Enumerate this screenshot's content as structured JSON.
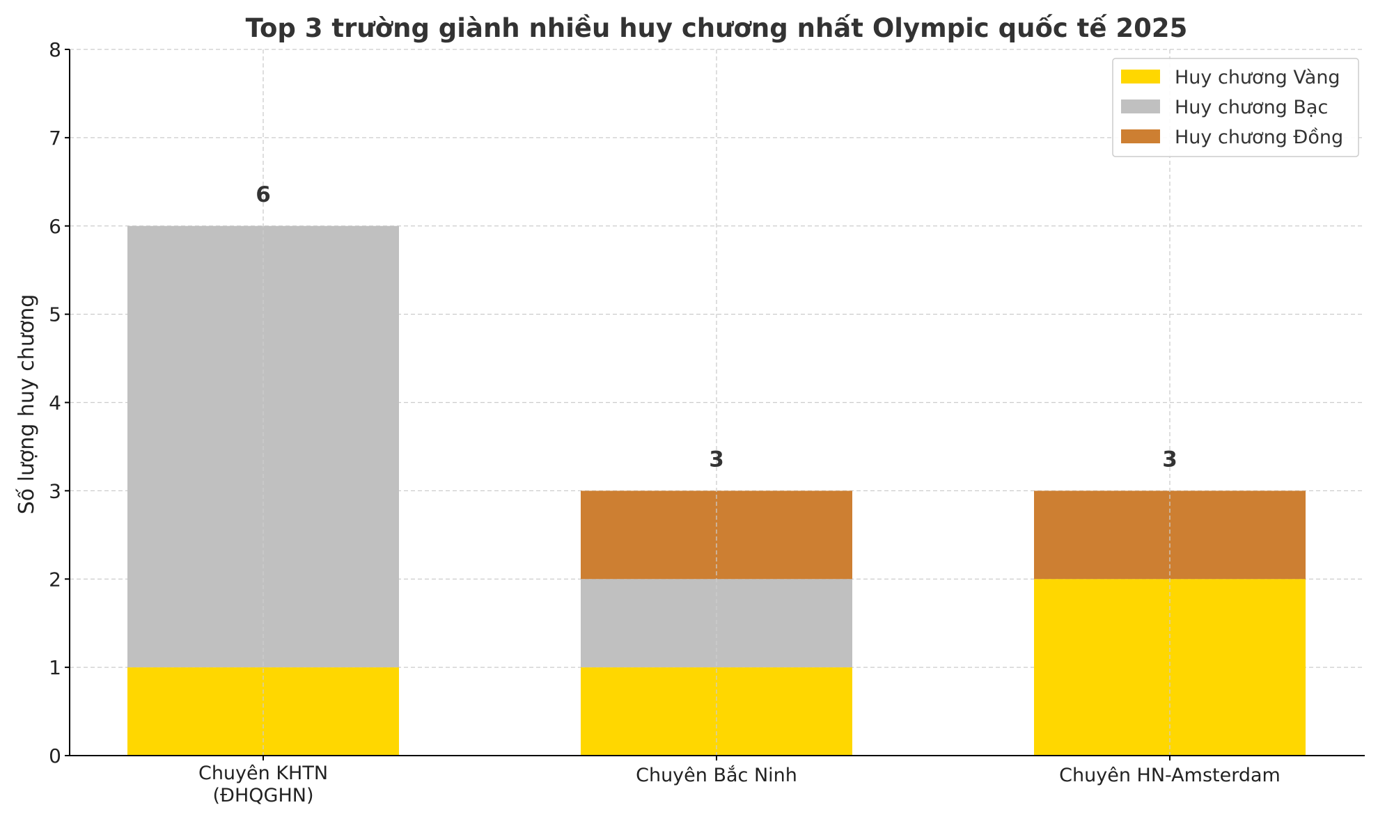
{
  "chart_data": {
    "type": "bar",
    "stacked": true,
    "title": "Top 3 trường giành nhiều huy chương nhất Olympic quốc tế 2025",
    "xlabel": "",
    "ylabel": "Số lượng huy chương",
    "categories": [
      [
        "Chuyên KHTN",
        "(ĐHQGHN)"
      ],
      [
        "Chuyên Bắc Ninh"
      ],
      [
        "Chuyên HN-Amsterdam"
      ]
    ],
    "series": [
      {
        "name": "Huy chương Vàng",
        "color": "#FFD700",
        "values": [
          1,
          1,
          2
        ]
      },
      {
        "name": "Huy chương Bạc",
        "color": "#C0C0C0",
        "values": [
          5,
          1,
          0
        ]
      },
      {
        "name": "Huy chương Đồng",
        "color": "#CD7F32",
        "values": [
          0,
          1,
          1
        ]
      }
    ],
    "totals": [
      "6",
      "3",
      "3"
    ],
    "ylim": [
      0,
      8
    ],
    "yticks": [
      "0",
      "1",
      "2",
      "3",
      "4",
      "5",
      "6",
      "7",
      "8"
    ],
    "grid": true,
    "legend_position": "top-right"
  }
}
